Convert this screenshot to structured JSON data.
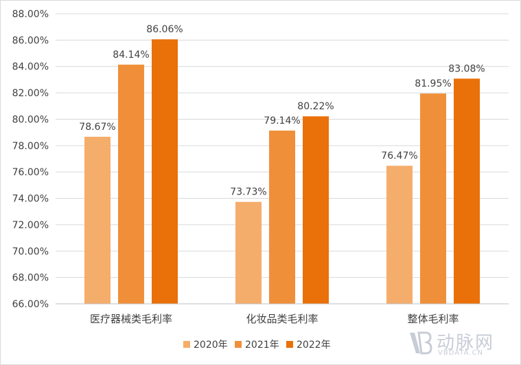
{
  "chart_data": {
    "type": "bar",
    "categories": [
      "医疗器械类毛利率",
      "化妆品类毛利率",
      "整体毛利率"
    ],
    "series": [
      {
        "name": "2020年",
        "color": "#f5ad6b",
        "values": [
          78.67,
          73.73,
          76.47
        ],
        "labels": [
          "78.67%",
          "73.73%",
          "76.47%"
        ]
      },
      {
        "name": "2021年",
        "color": "#f08f3a",
        "values": [
          84.14,
          79.14,
          81.95
        ],
        "labels": [
          "84.14%",
          "79.14%",
          "81.95%"
        ]
      },
      {
        "name": "2022年",
        "color": "#ea700a",
        "values": [
          86.06,
          80.22,
          83.08
        ],
        "labels": [
          "86.06%",
          "80.22%",
          "83.08%"
        ]
      }
    ],
    "yticks": [
      "66.00%",
      "68.00%",
      "70.00%",
      "72.00%",
      "74.00%",
      "76.00%",
      "78.00%",
      "80.00%",
      "82.00%",
      "84.00%",
      "86.00%",
      "88.00%"
    ],
    "ylim": [
      66,
      88
    ],
    "grid": true,
    "legend_position": "bottom",
    "title": "",
    "xlabel": "",
    "ylabel": ""
  },
  "watermark": {
    "main": "动脉网",
    "sub": "VBDATA.CN"
  }
}
